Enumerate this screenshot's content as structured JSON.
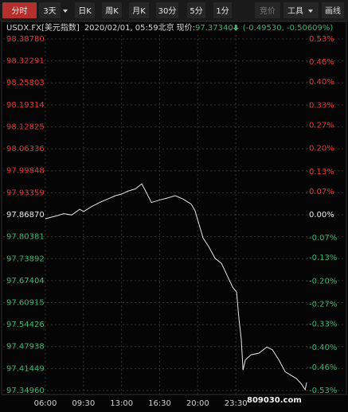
{
  "toolbar": {
    "tabs": [
      "分时",
      "3天",
      "日K",
      "周K",
      "月K",
      "30分",
      "5分",
      "1分"
    ],
    "tools": [
      "竞价",
      "工具",
      "画线"
    ]
  },
  "chart_data": {
    "type": "line",
    "symbol": "USDX.FX[美元指数]",
    "datetime": "2020/02/01, 05:59北京",
    "price_label": "现价:",
    "price": "97.37340",
    "change": "(-0.49530, -0.50609%)",
    "watermark": "809030.com",
    "x": [
      0,
      0.59,
      1.1,
      1.68,
      2.42,
      3.15,
      3.51,
      4.25,
      4.98,
      5.71,
      6.44,
      7.03,
      7.54,
      8.27,
      8.86,
      9.22,
      9.74,
      10.47,
      11.2,
      11.93,
      12.66,
      13.4,
      13.76,
      13.98,
      14.49,
      15.0,
      15.59,
      16.18,
      16.69,
      17.2,
      17.57,
      17.79,
      18.0,
      18.16,
      18.37,
      18.89,
      19.62,
      20.35,
      20.86,
      21.45,
      22.03,
      22.55,
      23.06,
      23.5,
      23.87,
      24.0
    ],
    "series": [
      {
        "name": "USDX",
        "color": "#e6e6e6",
        "values": [
          97.857,
          97.862,
          97.866,
          97.872,
          97.868,
          97.885,
          97.878,
          97.893,
          97.905,
          97.915,
          97.925,
          97.93,
          97.938,
          97.945,
          97.96,
          97.938,
          97.905,
          97.912,
          97.918,
          97.925,
          97.915,
          97.9,
          97.88,
          97.855,
          97.8,
          97.775,
          97.74,
          97.725,
          97.69,
          97.655,
          97.64,
          97.56,
          97.5,
          97.41,
          97.44,
          97.455,
          97.46,
          97.478,
          97.47,
          97.44,
          97.405,
          97.395,
          97.385,
          97.37,
          97.352,
          97.373
        ]
      }
    ],
    "xlim": [
      0,
      24
    ],
    "xticks": [
      {
        "value": 0,
        "label": "06:00"
      },
      {
        "value": 3.5,
        "label": "09:30"
      },
      {
        "value": 7,
        "label": "13:00"
      },
      {
        "value": 10.5,
        "label": "16:30"
      },
      {
        "value": 14,
        "label": "20:00"
      },
      {
        "value": 17.5,
        "label": "23:30"
      }
    ],
    "ylim": [
      97.3496,
      98.3878
    ],
    "yticks": [
      {
        "value": 98.3878,
        "label": "98.38780"
      },
      98.32291,
      98.25803,
      98.19314,
      98.12825,
      98.06336,
      97.99848,
      97.93359,
      {
        "value": 97.8687,
        "label": "97.86870"
      },
      97.80381,
      97.73892,
      97.67404,
      97.60915,
      97.54426,
      97.47938,
      97.41449,
      {
        "value": 97.3496,
        "label": "97.34960"
      }
    ],
    "y2lim": [
      -0.53,
      0.53
    ],
    "y2ticks": [
      {
        "value": 0.53,
        "label": "0.53%"
      },
      {
        "value": 0.46,
        "label": "0.46%"
      },
      {
        "value": 0.4,
        "label": "0.40%"
      },
      {
        "value": 0.33,
        "label": "0.33%"
      },
      {
        "value": 0.27,
        "label": "0.27%"
      },
      {
        "value": 0.2,
        "label": "0.20%"
      },
      {
        "value": 0.13,
        "label": "0.13%"
      },
      {
        "value": 0.07,
        "label": "0.07%"
      },
      {
        "value": 0,
        "label": "0.00%"
      },
      {
        "value": -0.07,
        "label": "-0.07%"
      },
      {
        "value": -0.13,
        "label": "-0.13%"
      },
      {
        "value": -0.2,
        "label": "-0.20%"
      },
      {
        "value": -0.27,
        "label": "-0.27%"
      },
      {
        "value": -0.33,
        "label": "-0.33%"
      },
      {
        "value": -0.4,
        "label": "-0.40%"
      },
      {
        "value": -0.46,
        "label": "-0.46%"
      },
      {
        "value": -0.53,
        "label": "-0.53%"
      }
    ],
    "grid": true,
    "up_color": "#e2383a",
    "down_color": "#3fb371",
    "flat_color": "#e6e6e6"
  }
}
